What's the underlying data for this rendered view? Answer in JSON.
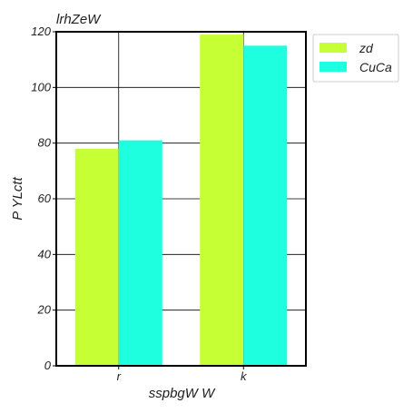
{
  "chart_data": {
    "type": "bar",
    "title": "lrhZeW",
    "xlabel": "sspbgW W",
    "ylabel": "P YLctt",
    "categories": [
      "r",
      "k"
    ],
    "series": [
      {
        "name": "zd",
        "values": [
          78,
          119
        ],
        "color": "#c6ff33"
      },
      {
        "name": "CuCa",
        "values": [
          81,
          115
        ],
        "color": "#1effe0"
      }
    ],
    "ylim": [
      0,
      120
    ],
    "yticks": [
      0,
      20,
      40,
      60,
      80,
      100,
      120
    ],
    "grid": true,
    "legend_position": "outside-top-right"
  }
}
